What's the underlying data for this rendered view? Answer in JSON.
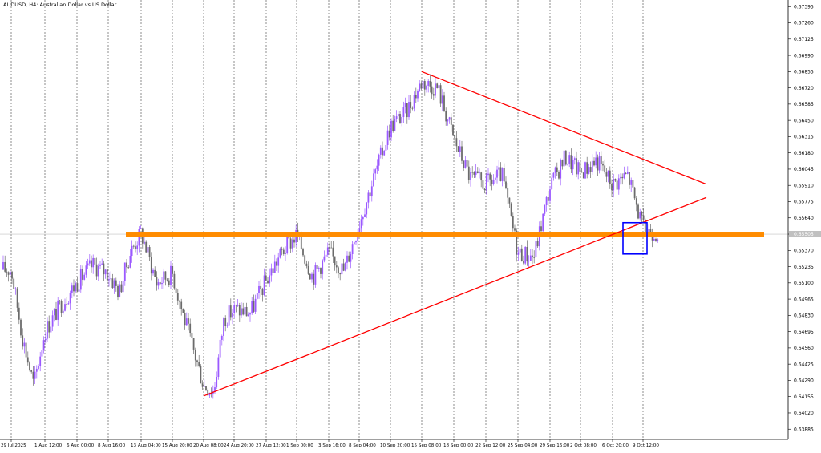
{
  "chart_data": {
    "type": "candlestick",
    "title": "AUDUSD, H4:  Australian Dollar vs US Dollar",
    "symbol": "AUDUSD",
    "timeframe": "H4",
    "description": "Australian Dollar vs US Dollar",
    "ylim": [
      0.638,
      0.6745
    ],
    "y_ticks": [
      "0.67395",
      "0.67260",
      "0.67125",
      "0.66990",
      "0.66855",
      "0.66720",
      "0.66585",
      "0.66450",
      "0.66315",
      "0.66180",
      "0.66045",
      "0.65910",
      "0.65775",
      "0.65640",
      "0.65505",
      "0.65370",
      "0.65235",
      "0.65100",
      "0.64965",
      "0.64830",
      "0.64695",
      "0.64560",
      "0.64425",
      "0.64290",
      "0.64155",
      "0.64020",
      "0.63885"
    ],
    "x_ticks": [
      "29 Jul 2025",
      "1 Aug 12:00",
      "6 Aug 00:00",
      "8 Aug 16:00",
      "13 Aug 04:00",
      "15 Aug 20:00",
      "20 Aug 08:00",
      "24 Aug 20:00",
      "27 Aug 12:00",
      "1 Sep 00:00",
      "3 Sep 16:00",
      "8 Sep 04:00",
      "10 Sep 20:00",
      "15 Sep 08:00",
      "18 Sep 00:00",
      "22 Sep 12:00",
      "25 Sep 04:00",
      "29 Sep 16:00",
      "2 Oct 08:00",
      "6 Oct 20:00",
      "9 Oct 12:00"
    ],
    "current_price": "0.65505",
    "grid": {
      "vertical_dotted": true,
      "horizontal": false
    },
    "price_path": [
      {
        "date": "29 Jul 2025",
        "price": 0.6521
      },
      {
        "date": "30 Jul",
        "price": 0.6465
      },
      {
        "date": "31 Jul",
        "price": 0.6425
      },
      {
        "date": "1 Aug 12:00",
        "price": 0.647
      },
      {
        "date": "4 Aug",
        "price": 0.6492
      },
      {
        "date": "6 Aug 00:00",
        "price": 0.651
      },
      {
        "date": "7 Aug",
        "price": 0.6525
      },
      {
        "date": "8 Aug 16:00",
        "price": 0.6518
      },
      {
        "date": "11 Aug",
        "price": 0.6502
      },
      {
        "date": "12 Aug",
        "price": 0.6535
      },
      {
        "date": "13 Aug 04:00",
        "price": 0.6552
      },
      {
        "date": "14 Aug",
        "price": 0.651
      },
      {
        "date": "15 Aug 20:00",
        "price": 0.6518
      },
      {
        "date": "18 Aug",
        "price": 0.6485
      },
      {
        "date": "19 Aug",
        "price": 0.6455
      },
      {
        "date": "20 Aug 08:00",
        "price": 0.6425
      },
      {
        "date": "21 Aug",
        "price": 0.642
      },
      {
        "date": "22 Aug",
        "price": 0.648
      },
      {
        "date": "24 Aug 20:00",
        "price": 0.6488
      },
      {
        "date": "26 Aug",
        "price": 0.6485
      },
      {
        "date": "27 Aug 12:00",
        "price": 0.6512
      },
      {
        "date": "29 Aug",
        "price": 0.6535
      },
      {
        "date": "1 Sep 00:00",
        "price": 0.655
      },
      {
        "date": "2 Sep",
        "price": 0.6515
      },
      {
        "date": "3 Sep 16:00",
        "price": 0.6535
      },
      {
        "date": "5 Sep",
        "price": 0.652
      },
      {
        "date": "8 Sep 04:00",
        "price": 0.656
      },
      {
        "date": "9 Sep",
        "price": 0.66
      },
      {
        "date": "10 Sep 20:00",
        "price": 0.664
      },
      {
        "date": "12 Sep",
        "price": 0.6652
      },
      {
        "date": "15 Sep 08:00",
        "price": 0.6677
      },
      {
        "date": "16 Sep",
        "price": 0.6672
      },
      {
        "date": "18 Sep 00:00",
        "price": 0.663
      },
      {
        "date": "19 Sep",
        "price": 0.6598
      },
      {
        "date": "22 Sep 12:00",
        "price": 0.6592
      },
      {
        "date": "24 Sep",
        "price": 0.66
      },
      {
        "date": "25 Sep 04:00",
        "price": 0.6535
      },
      {
        "date": "26 Sep",
        "price": 0.6532
      },
      {
        "date": "29 Sep 16:00",
        "price": 0.659
      },
      {
        "date": "1 Oct",
        "price": 0.6615
      },
      {
        "date": "2 Oct 08:00",
        "price": 0.6602
      },
      {
        "date": "3 Oct",
        "price": 0.6612
      },
      {
        "date": "6 Oct 20:00",
        "price": 0.6592
      },
      {
        "date": "8 Oct",
        "price": 0.66
      },
      {
        "date": "9 Oct 12:00",
        "price": 0.6555
      },
      {
        "date": "10 Oct",
        "price": 0.6552
      }
    ],
    "annotations": {
      "horizontal_zone": {
        "price": 0.65505,
        "color": "#ff8c00"
      },
      "trendlines": [
        {
          "from": {
            "date": "15 Sep 08:00",
            "price": 0.66855
          },
          "to": {
            "date": "10 Oct",
            "price": 0.6592
          },
          "color": "#ff0000"
        },
        {
          "from": {
            "date": "20 Aug 08:00",
            "price": 0.6416
          },
          "to": {
            "date": "10 Oct",
            "price": 0.6581
          },
          "color": "#ff0000"
        }
      ],
      "highlight_box": {
        "date_start": "9 Oct 12:00",
        "date_end": "10 Oct",
        "price_top": 0.656,
        "price_bottom": 0.6534,
        "color": "#0000ff"
      }
    },
    "colors": {
      "bull_candle": "#9b59ff",
      "bear_candle": "#6b6b6b",
      "grid_line": "#444444",
      "price_line": "#c0c0c0"
    }
  }
}
